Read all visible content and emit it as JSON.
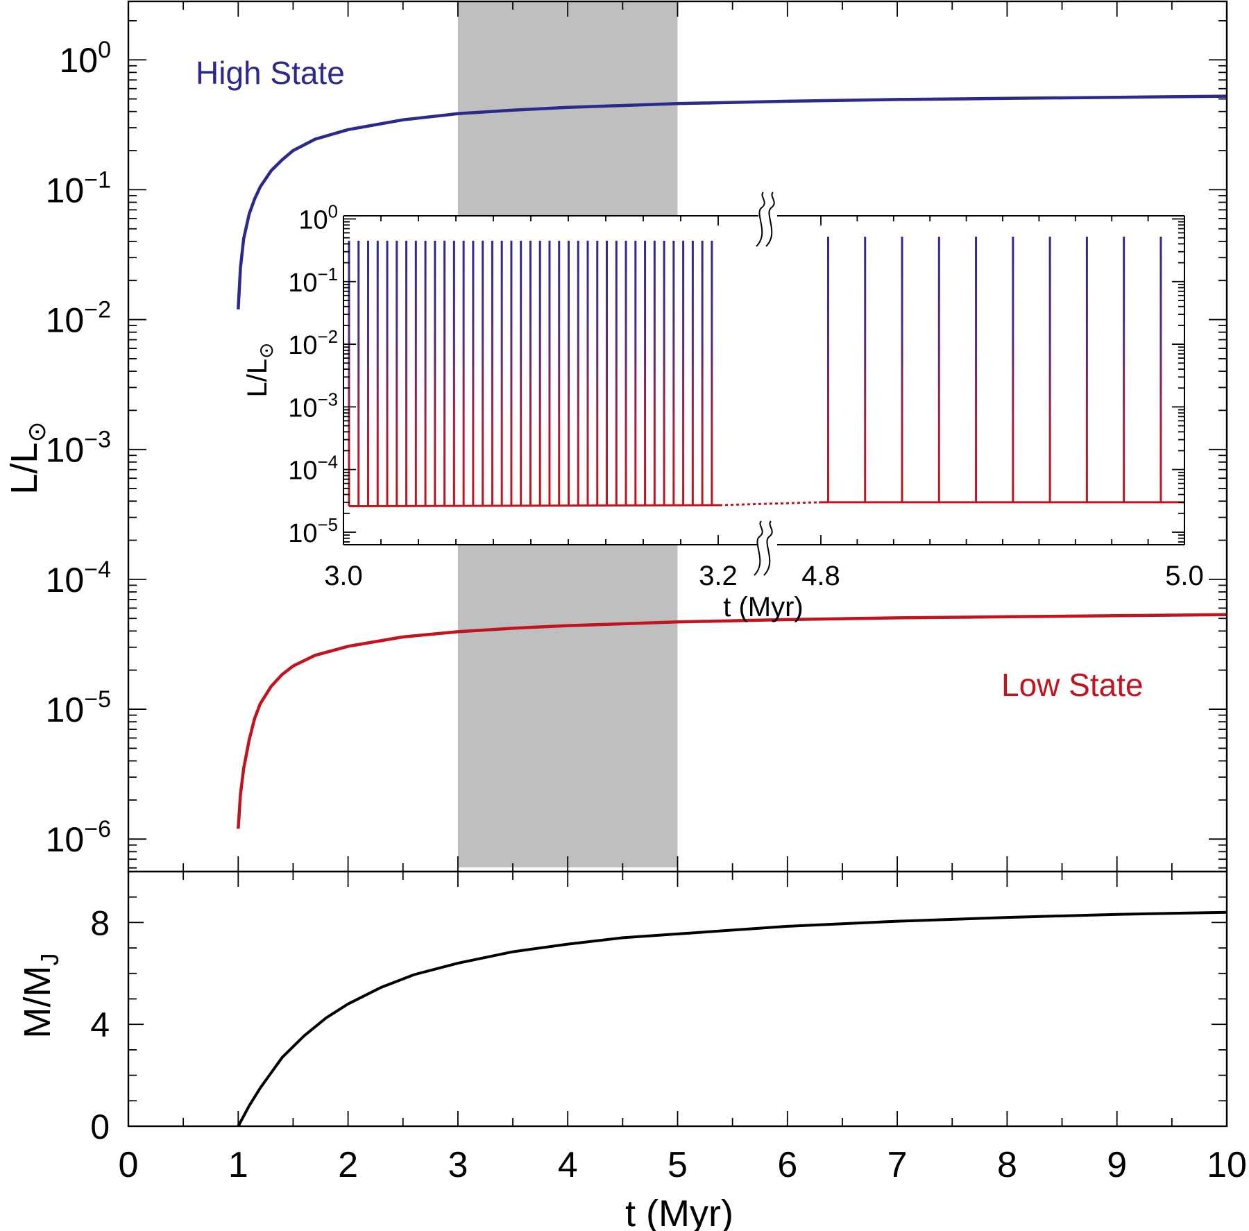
{
  "colors": {
    "high": "#2b2a8c",
    "low": "#c0141f",
    "mass": "#000000",
    "shade": "#bfbfbf"
  },
  "chart_data": [
    {
      "type": "line",
      "panel": "top",
      "ylabel": "L/L",
      "ylabel_sub": "⊙",
      "xlim": [
        0,
        10
      ],
      "ylim_log10": [
        -6.25,
        0.45
      ],
      "yscale": "log",
      "ytick_exponents": [
        0,
        -1,
        -2,
        -3,
        -4,
        -5,
        -6
      ],
      "shaded_band_x": [
        3,
        5
      ],
      "series": [
        {
          "name": "High State",
          "x": [
            1.0,
            1.02,
            1.05,
            1.1,
            1.15,
            1.2,
            1.3,
            1.4,
            1.5,
            1.7,
            2.0,
            2.5,
            3.0,
            3.5,
            4.0,
            5.0,
            6.0,
            7.0,
            8.0,
            9.0,
            10.0
          ],
          "y": [
            0.012,
            0.025,
            0.042,
            0.065,
            0.085,
            0.105,
            0.14,
            0.17,
            0.2,
            0.245,
            0.29,
            0.345,
            0.385,
            0.41,
            0.43,
            0.46,
            0.48,
            0.495,
            0.505,
            0.515,
            0.525
          ]
        },
        {
          "name": "Low State",
          "x": [
            1.0,
            1.02,
            1.05,
            1.1,
            1.15,
            1.2,
            1.3,
            1.4,
            1.5,
            1.7,
            2.0,
            2.5,
            3.0,
            3.5,
            4.0,
            5.0,
            6.0,
            7.0,
            8.0,
            9.0,
            10.0
          ],
          "y": [
            1.2e-06,
            2.2e-06,
            3.5e-06,
            5.8e-06,
            8.5e-06,
            1.1e-05,
            1.5e-05,
            1.85e-05,
            2.15e-05,
            2.6e-05,
            3.05e-05,
            3.6e-05,
            3.95e-05,
            4.2e-05,
            4.4e-05,
            4.7e-05,
            4.9e-05,
            5.05e-05,
            5.15e-05,
            5.25e-05,
            5.35e-05
          ]
        }
      ]
    },
    {
      "type": "line",
      "panel": "inset",
      "ylabel": "L/L",
      "ylabel_sub": "⊙",
      "xlabel": "t (Myr)",
      "yscale": "log",
      "ylim_log10": [
        -5.2,
        0.05
      ],
      "ytick_exponents": [
        0,
        -1,
        -2,
        -3,
        -4,
        -5
      ],
      "x_broken_axis": true,
      "x_tick_labels": [
        "3.0",
        "3.2",
        "4.8",
        "5.0"
      ],
      "segment_1": {
        "xlim": [
          3.0,
          3.2
        ],
        "spike_count": 39,
        "spike_first": 3.0,
        "spike_last": 3.2,
        "peak": 0.45,
        "baseline_start": 2.6e-05,
        "baseline_end": 2.7e-05
      },
      "segment_2": {
        "xlim": [
          4.8,
          5.0
        ],
        "spike_count": 10,
        "spike_first": 4.804,
        "spike_last": 4.987,
        "peak": 0.52,
        "baseline": 3e-05
      }
    },
    {
      "type": "line",
      "panel": "bottom",
      "ylabel": "M/M",
      "ylabel_sub": "J",
      "xlabel": "t (Myr)",
      "xlim": [
        0,
        10
      ],
      "ylim": [
        0,
        10
      ],
      "x_ticks": [
        0,
        1,
        2,
        3,
        4,
        5,
        6,
        7,
        8,
        9,
        10
      ],
      "y_ticks": [
        0,
        4,
        8
      ],
      "series": [
        {
          "name": "M",
          "x": [
            1.0,
            1.1,
            1.2,
            1.4,
            1.6,
            1.8,
            2.0,
            2.3,
            2.6,
            3.0,
            3.5,
            4.0,
            4.5,
            5.0,
            6.0,
            7.0,
            8.0,
            9.0,
            10.0
          ],
          "y": [
            0.0,
            0.8,
            1.5,
            2.7,
            3.55,
            4.25,
            4.8,
            5.45,
            5.95,
            6.4,
            6.85,
            7.15,
            7.4,
            7.55,
            7.85,
            8.05,
            8.2,
            8.32,
            8.4
          ]
        }
      ]
    }
  ],
  "annotations": {
    "high_label": "High State",
    "low_label": "Low State"
  }
}
